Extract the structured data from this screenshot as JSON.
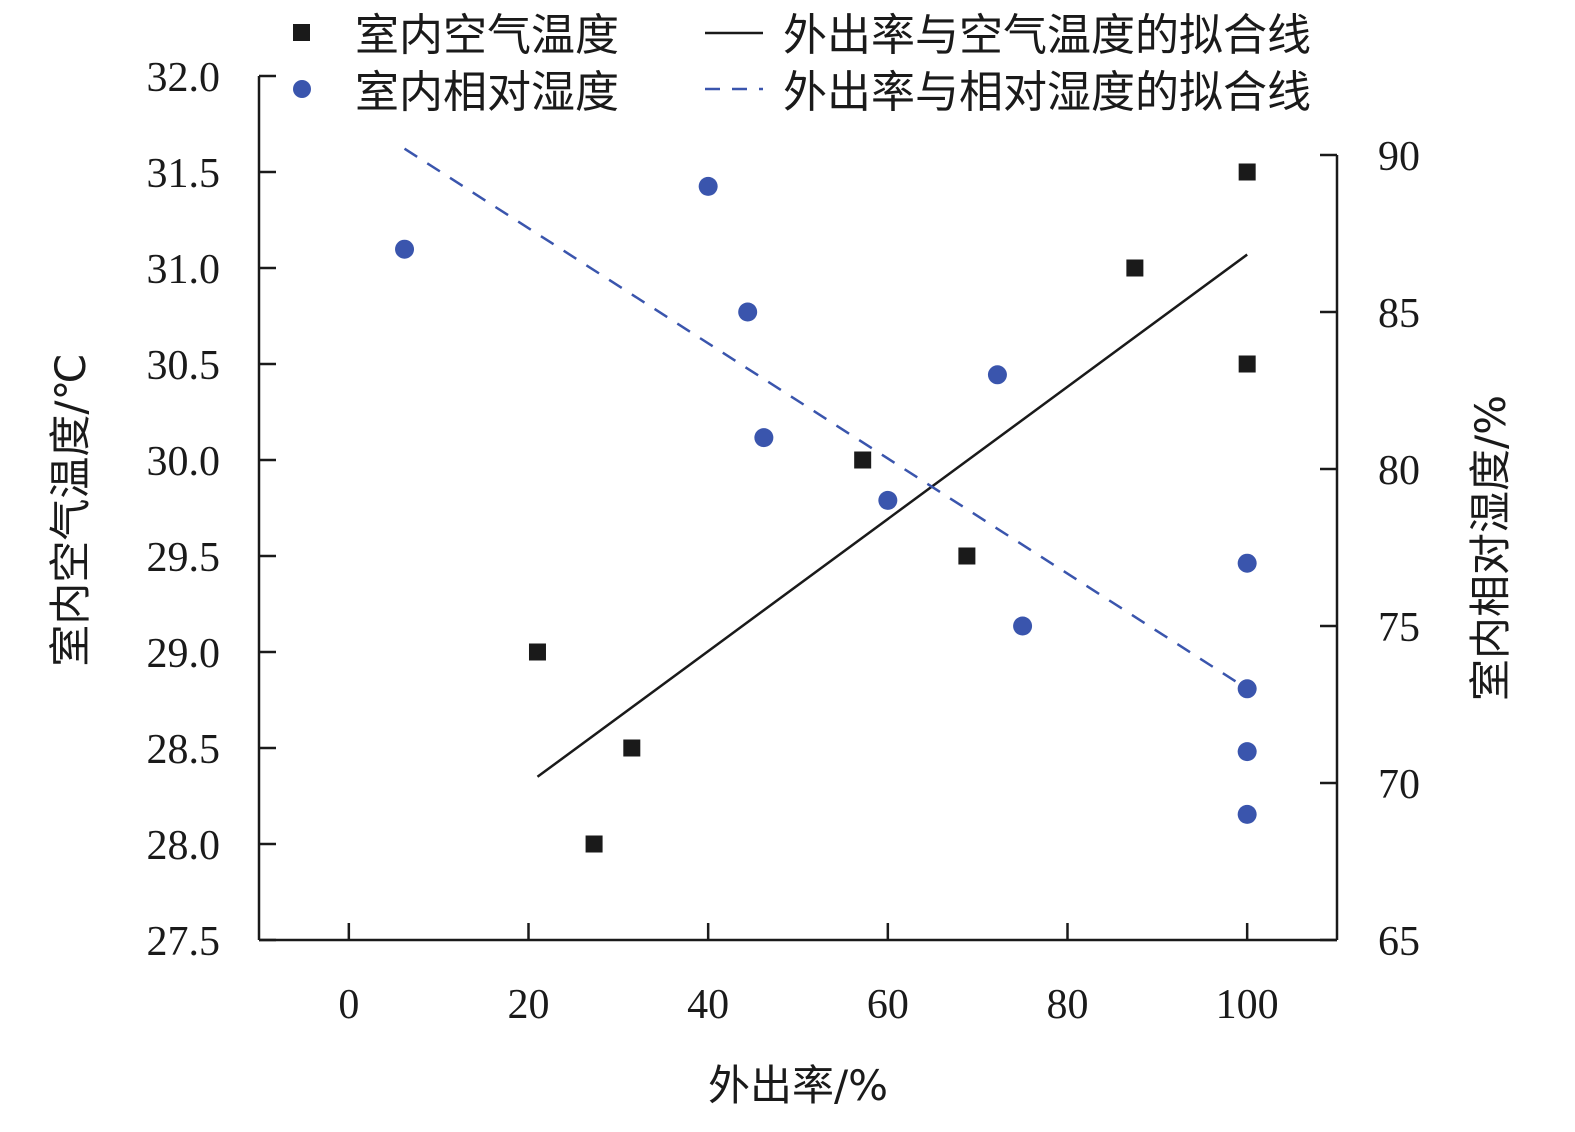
{
  "chart_data": {
    "type": "scatter",
    "xlabel": "外出率/%",
    "ylabel_left": "室内空气温度/℃",
    "ylabel_right": "室内相对湿度/%",
    "x_ticks": [
      "0",
      "20",
      "40",
      "60",
      "80",
      "100"
    ],
    "y_left_ticks": [
      "27.5",
      "28.0",
      "28.5",
      "29.0",
      "29.5",
      "30.0",
      "30.5",
      "31.0",
      "31.5",
      "32.0"
    ],
    "y_right_ticks": [
      "65",
      "70",
      "75",
      "80",
      "85",
      "90"
    ],
    "xlim": [
      -10,
      110
    ],
    "ylim_left": [
      27.5,
      32.0
    ],
    "ylim_right": [
      65,
      90
    ],
    "legend_position": "top",
    "series": [
      {
        "name": "室内空气温度",
        "axis": "left",
        "marker": "square",
        "color": "#1a1a1a",
        "points": [
          {
            "x": 21,
            "y": 29.0
          },
          {
            "x": 27.3,
            "y": 28.0
          },
          {
            "x": 31.5,
            "y": 28.5
          },
          {
            "x": 57.2,
            "y": 30.0
          },
          {
            "x": 68.8,
            "y": 29.5
          },
          {
            "x": 87.5,
            "y": 31.0
          },
          {
            "x": 100,
            "y": 31.5
          },
          {
            "x": 100,
            "y": 30.5
          }
        ]
      },
      {
        "name": "室内相对湿度",
        "axis": "right",
        "marker": "circle",
        "color": "#3a55ad",
        "points": [
          {
            "x": 6.2,
            "y": 87
          },
          {
            "x": 40,
            "y": 89
          },
          {
            "x": 44.4,
            "y": 85
          },
          {
            "x": 46.2,
            "y": 81
          },
          {
            "x": 60,
            "y": 79
          },
          {
            "x": 72.2,
            "y": 83
          },
          {
            "x": 75,
            "y": 75
          },
          {
            "x": 100,
            "y": 77
          },
          {
            "x": 100,
            "y": 73
          },
          {
            "x": 100,
            "y": 71
          },
          {
            "x": 100,
            "y": 69
          }
        ]
      },
      {
        "name": "外出率与空气温度的拟合线",
        "axis": "left",
        "style": "solid",
        "color": "#1a1a1a",
        "points": [
          {
            "x": 21,
            "y": 28.35
          },
          {
            "x": 100,
            "y": 31.07
          }
        ]
      },
      {
        "name": "外出率与相对湿度的拟合线",
        "axis": "right",
        "style": "dashed",
        "color": "#3a55ad",
        "points": [
          {
            "x": 6.2,
            "y": 90.2
          },
          {
            "x": 100,
            "y": 73.0
          }
        ]
      }
    ]
  }
}
